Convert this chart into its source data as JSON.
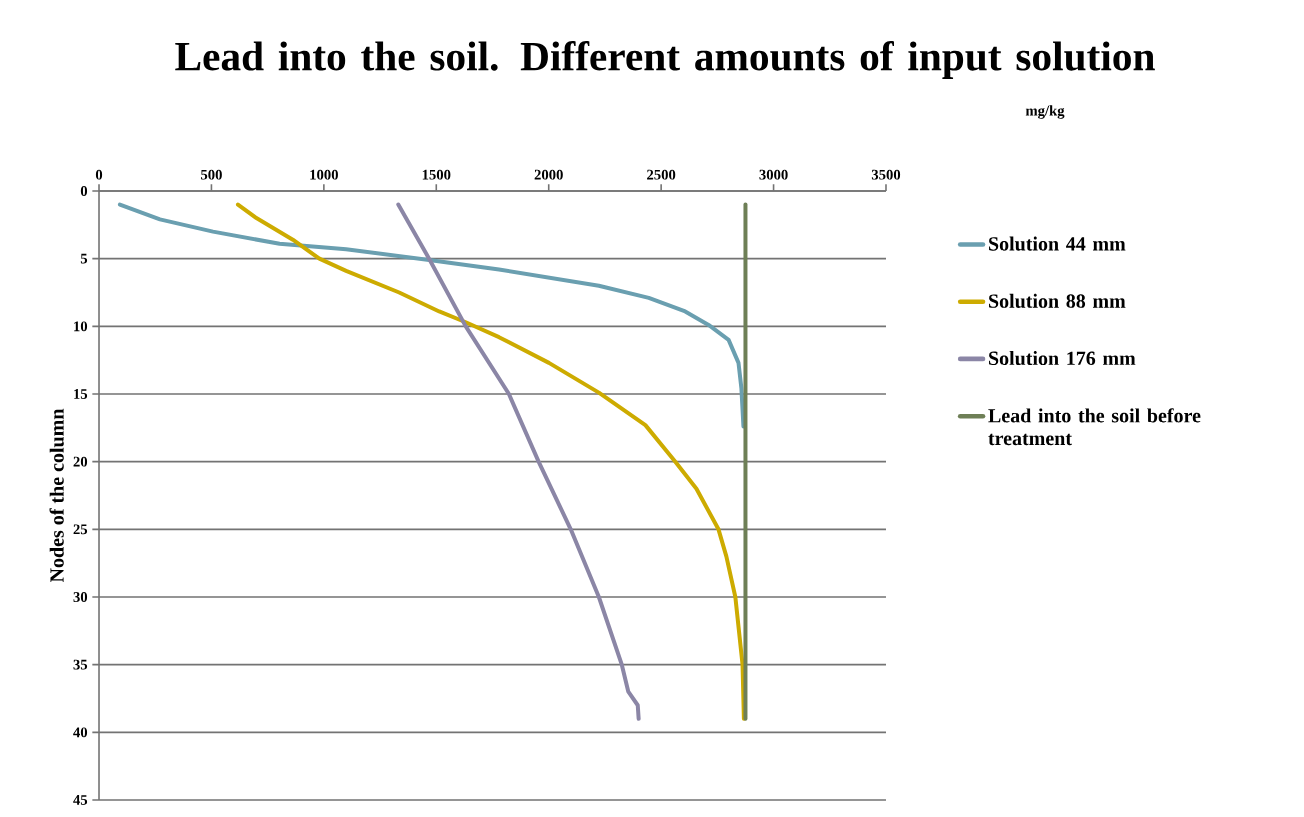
{
  "chart_data": {
    "type": "line",
    "title": "Lead into the soil. Different amounts of input solution",
    "annotations": [
      "mg/kg"
    ],
    "ylabel": "Nodes of the column",
    "xlim": [
      0,
      3500
    ],
    "xticks": [
      0,
      500,
      1000,
      1500,
      2000,
      2500,
      3000,
      3500
    ],
    "ylim": [
      45,
      0
    ],
    "yticks": [
      0,
      5,
      10,
      15,
      20,
      25,
      30,
      35,
      40,
      45
    ],
    "grid": "y",
    "legend": "right",
    "series": [
      {
        "name": "Solution 44 mm",
        "color": "#6a9fb0",
        "x": [
          93,
          271,
          507,
          803,
          1099,
          1468,
          1779,
          2223,
          2445,
          2607,
          2711,
          2800,
          2844,
          2857,
          2866
        ],
        "values": [
          1,
          2.1,
          3,
          3.9,
          4.3,
          5.1,
          5.8,
          7,
          7.9,
          8.9,
          9.9,
          11,
          12.7,
          14.6,
          17.4
        ]
      },
      {
        "name": "Solution 88 mm",
        "color": "#cdab00",
        "x": [
          618,
          700,
          862,
          980,
          1099,
          1335,
          1513,
          1631,
          1779,
          2001,
          2223,
          2430,
          2563,
          2657,
          2755,
          2790,
          2830,
          2862,
          2868
        ],
        "values": [
          1,
          2,
          3.6,
          5,
          5.9,
          7.5,
          8.9,
          9.7,
          10.8,
          12.7,
          14.9,
          17.3,
          20,
          22,
          25,
          27,
          30,
          35,
          39
        ]
      },
      {
        "name": "Solution 176 mm",
        "color": "#8b86a6",
        "x": [
          1331,
          1468,
          1631,
          1823,
          1955,
          2098,
          2223,
          2325,
          2354,
          2396,
          2400
        ],
        "values": [
          1,
          5,
          10,
          15,
          20,
          25,
          30,
          35,
          37,
          38,
          39
        ]
      },
      {
        "name": "Lead into the soil before treatment",
        "color": "#6e7f56",
        "x": [
          2875,
          2875
        ],
        "values": [
          1,
          39
        ]
      }
    ]
  }
}
